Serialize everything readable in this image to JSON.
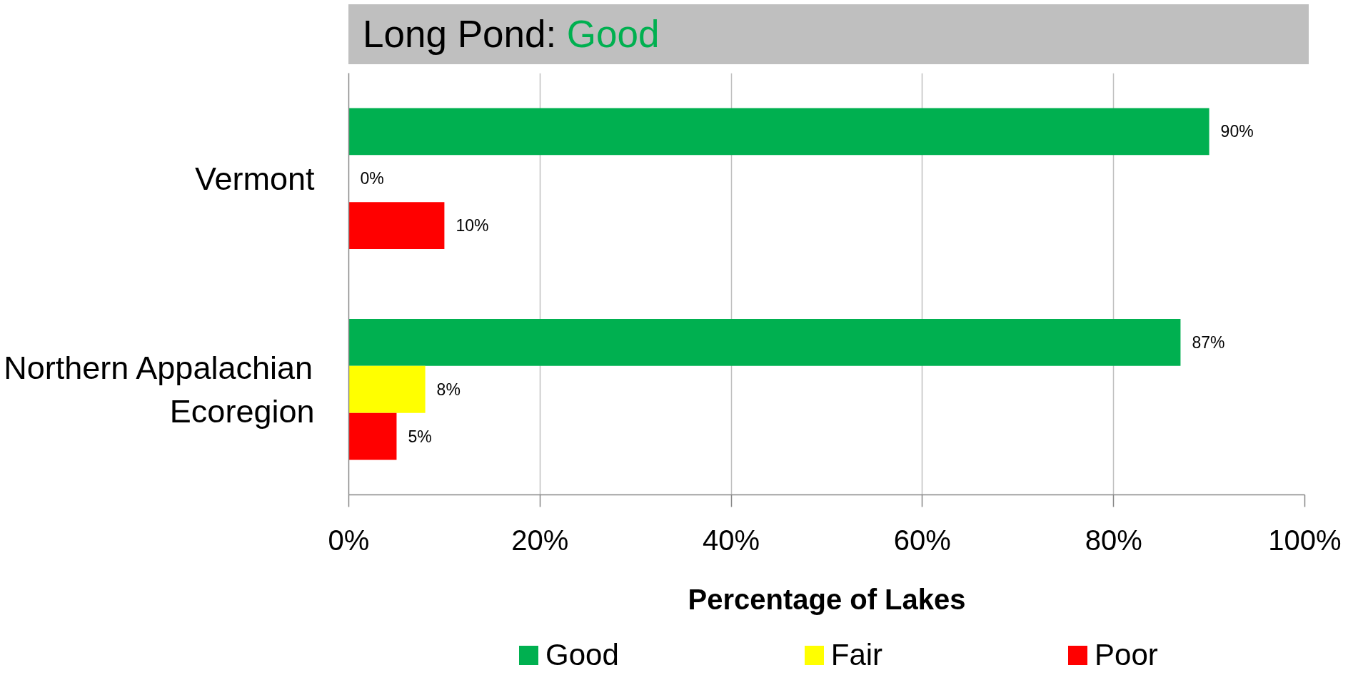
{
  "chart_data": {
    "type": "bar",
    "orientation": "horizontal",
    "title": "Long Pond: Good",
    "xlabel": "Percentage of Lakes",
    "categories": [
      "Vermont",
      "Northern Appalachian Ecoregion"
    ],
    "series": [
      {
        "name": "Good",
        "color": "#00b050",
        "values": [
          90,
          87
        ],
        "value_labels": [
          "90%",
          "87%"
        ]
      },
      {
        "name": "Fair",
        "color": "#ffff00",
        "values": [
          0,
          8
        ],
        "value_labels": [
          "0%",
          "8%"
        ]
      },
      {
        "name": "Poor",
        "color": "#ff0000",
        "values": [
          10,
          5
        ],
        "value_labels": [
          "10%",
          "5%"
        ]
      }
    ],
    "xlim": [
      0,
      100
    ],
    "xticks": [
      {
        "value": 0,
        "label": "0%"
      },
      {
        "value": 20,
        "label": "20%"
      },
      {
        "value": 40,
        "label": "40%"
      },
      {
        "value": 60,
        "label": "60%"
      },
      {
        "value": 80,
        "label": "80%"
      },
      {
        "value": 100,
        "label": "100%"
      }
    ],
    "grid": "x",
    "legend": "bottom"
  }
}
